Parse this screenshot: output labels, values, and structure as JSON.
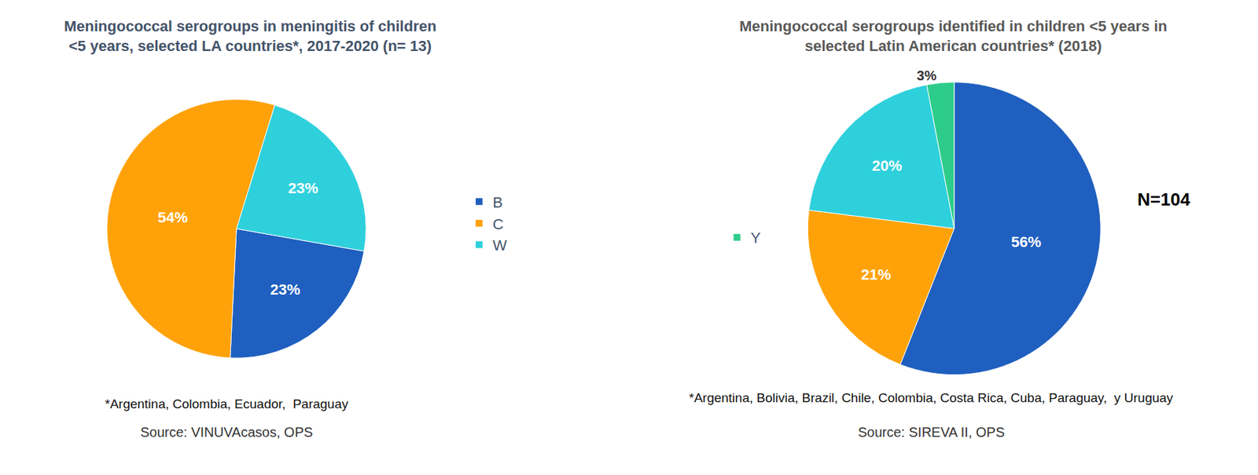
{
  "chart_data": [
    {
      "type": "pie",
      "title": "Meningococcal serogroups in meningitis of children <5 years, selected LA countries*, 2017-2020 (n= 13)",
      "categories": [
        "B",
        "C",
        "W"
      ],
      "values": [
        23,
        54,
        23
      ],
      "value_labels": [
        "23%",
        "54%",
        "23%"
      ],
      "colors": [
        "#1f5fbf",
        "#ffa20a",
        "#2ed0dc"
      ],
      "data_labels": true,
      "annotations": [
        "*Argentina, Colombia, Ecuador,  Paraguay",
        "Source: VINUVAcasos, OPS"
      ]
    },
    {
      "type": "pie",
      "title": "Meningococcal serogroups identified in children <5 years in selected Latin American countries* (2018)",
      "categories": [
        "B",
        "C",
        "W",
        "Y"
      ],
      "values": [
        56,
        21,
        20,
        3
      ],
      "value_labels": [
        "56%",
        "21%",
        "20%",
        "3%"
      ],
      "colors": [
        "#1f5fbf",
        "#ffa20a",
        "#2ed0dc",
        "#2ecc8a"
      ],
      "data_labels": true,
      "annotations": [
        "N=104",
        "*Argentina, Bolivia, Brazil, Chile, Colombia, Costa Rica, Cuba, Paraguay,  y Uruguay",
        "Source: SIREVA II, OPS"
      ]
    }
  ]
}
